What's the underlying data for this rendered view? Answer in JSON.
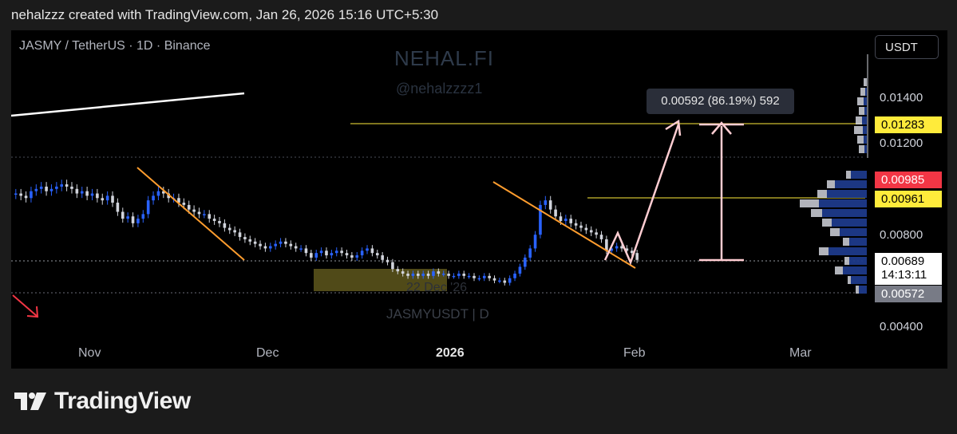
{
  "header": {
    "text": "nehalzzz created with TradingView.com, Jan 26, 2026 15:16 UTC+5:30"
  },
  "chart": {
    "symbol_title": "JASMY / TetherUS · 1D · Binance",
    "currency": "USDT",
    "watermark_brand": "NEHAL.FI",
    "watermark_handle": "@nehalzzzz1",
    "watermark_symbol": "JASMYUSDT | D",
    "watermark_date": "22 Dec '26",
    "measure_label": "0.00592 (86.19%) 592",
    "colors": {
      "bull": "#2962ff",
      "bear": "#d1d4dc",
      "trend": "#ff9d2e",
      "target": "#ffcdd2",
      "level": "#ffeb3b"
    }
  },
  "price_axis": {
    "labels": [
      "0.01400",
      "0.01200",
      "0.00800",
      "0.00400"
    ],
    "tags": {
      "target": "0.01283",
      "bid": "0.00985",
      "resistance": "0.00961",
      "last_price": "0.00689",
      "countdown": "14:13:11",
      "low": "0.00572"
    }
  },
  "time_axis": {
    "labels": [
      "Nov",
      "Dec",
      "2026",
      "Feb",
      "Mar"
    ]
  },
  "footer": {
    "brand": "TradingView"
  },
  "chart_data": {
    "type": "candlestick",
    "title": "JASMY / TetherUS · 1D · Binance",
    "x_ticks": [
      "Nov",
      "Dec",
      "2026",
      "Feb",
      "Mar"
    ],
    "y_ticks": [
      0.014,
      0.012,
      0.008,
      0.004
    ],
    "ylim": [
      0.0036,
      0.0158
    ],
    "close": [
      0.0098,
      0.0097,
      0.0096,
      0.0099,
      0.01,
      0.0101,
      0.0099,
      0.01,
      0.0101,
      0.0102,
      0.0101,
      0.01,
      0.0098,
      0.0099,
      0.0097,
      0.0098,
      0.0096,
      0.0095,
      0.0097,
      0.0094,
      0.009,
      0.0087,
      0.0088,
      0.0085,
      0.0087,
      0.0089,
      0.0095,
      0.0097,
      0.0099,
      0.0098,
      0.0096,
      0.0096,
      0.0094,
      0.0093,
      0.0091,
      0.009,
      0.0089,
      0.0089,
      0.0087,
      0.0086,
      0.0085,
      0.0083,
      0.0082,
      0.0081,
      0.0079,
      0.0078,
      0.0077,
      0.0076,
      0.0075,
      0.0074,
      0.0075,
      0.0076,
      0.0077,
      0.0076,
      0.0075,
      0.0074,
      0.0074,
      0.0072,
      0.007,
      0.0072,
      0.0073,
      0.0071,
      0.0072,
      0.0073,
      0.0072,
      0.0071,
      0.007,
      0.0071,
      0.0073,
      0.0074,
      0.0072,
      0.0071,
      0.0069,
      0.0068,
      0.0065,
      0.0064,
      0.0063,
      0.0062,
      0.0063,
      0.0062,
      0.0063,
      0.0062,
      0.0064,
      0.0063,
      0.0063,
      0.0062,
      0.0062,
      0.0063,
      0.0062,
      0.0062,
      0.0061,
      0.0061,
      0.0062,
      0.0061,
      0.006,
      0.006,
      0.0059,
      0.0061,
      0.0063,
      0.0066,
      0.007,
      0.0074,
      0.008,
      0.0093,
      0.0095,
      0.0091,
      0.0088,
      0.0086,
      0.0087,
      0.0085,
      0.0084,
      0.0083,
      0.0082,
      0.0081,
      0.008,
      0.0078,
      0.0073,
      0.0074,
      0.0075,
      0.0074,
      0.0073,
      0.0072,
      0.0069
    ],
    "series": [
      {
        "name": "resistance",
        "values": [
          0.01283
        ]
      },
      {
        "name": "level",
        "values": [
          0.00961
        ]
      },
      {
        "name": "current",
        "values": [
          0.00689
        ]
      },
      {
        "name": "support",
        "values": [
          0.00572
        ]
      }
    ],
    "grid": false
  }
}
